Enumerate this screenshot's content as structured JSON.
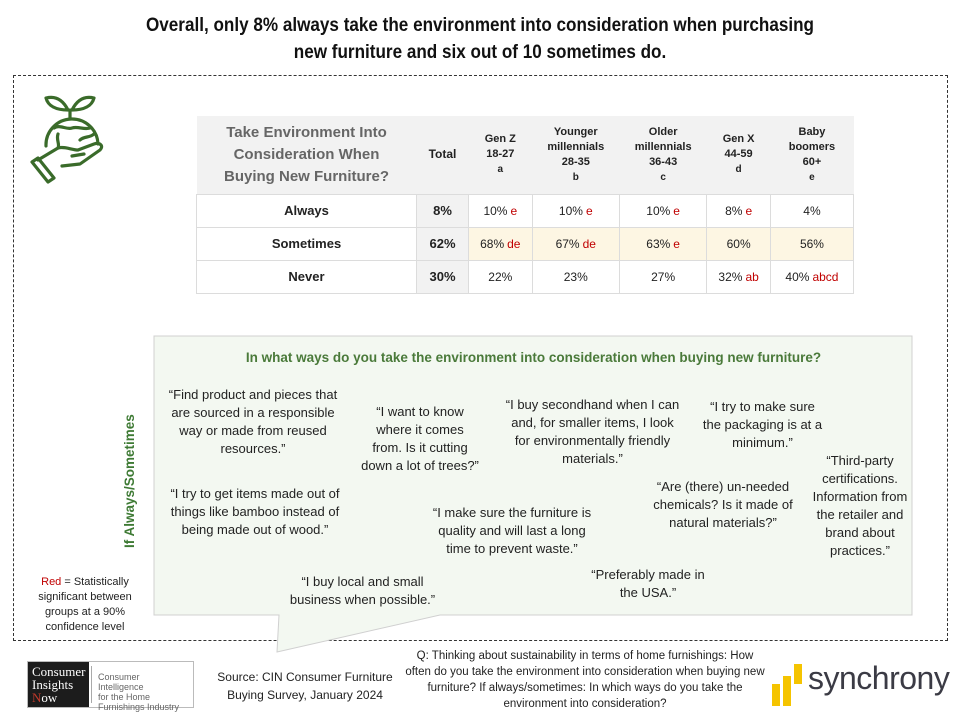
{
  "title": {
    "line1": "Overall, only 8% always take the environment into consideration when purchasing",
    "line2": "new furniture and six out of 10 sometimes do."
  },
  "icon": {
    "name": "hand-holding-earth-sprout-icon",
    "color": "#3a6b2a"
  },
  "table": {
    "question_header": [
      "Take Environment Into",
      "Consideration When",
      "Buying New Furniture?"
    ],
    "total_header": "Total",
    "columns": [
      {
        "lines": [
          "Gen Z",
          "18-27"
        ],
        "letter": "a"
      },
      {
        "lines": [
          "Younger",
          "millennials",
          "28-35"
        ],
        "letter": "b"
      },
      {
        "lines": [
          "Older",
          "millennials",
          "36-43"
        ],
        "letter": "c"
      },
      {
        "lines": [
          "Gen X",
          "44-59"
        ],
        "letter": "d"
      },
      {
        "lines": [
          "Baby",
          "boomers",
          "60+"
        ],
        "letter": "e"
      }
    ],
    "rows": [
      {
        "label": "Always",
        "total": "8%",
        "highlight": false,
        "cells": [
          {
            "value": "10%",
            "sig": "e"
          },
          {
            "value": "10%",
            "sig": "e"
          },
          {
            "value": "10%",
            "sig": "e"
          },
          {
            "value": "8%",
            "sig": "e"
          },
          {
            "value": "4%",
            "sig": ""
          }
        ]
      },
      {
        "label": "Sometimes",
        "total": "62%",
        "highlight": true,
        "cells": [
          {
            "value": "68%",
            "sig": "de"
          },
          {
            "value": "67%",
            "sig": "de"
          },
          {
            "value": "63%",
            "sig": "e"
          },
          {
            "value": "60%",
            "sig": ""
          },
          {
            "value": "56%",
            "sig": ""
          }
        ]
      },
      {
        "label": "Never",
        "total": "30%",
        "highlight": false,
        "cells": [
          {
            "value": "22%",
            "sig": ""
          },
          {
            "value": "23%",
            "sig": ""
          },
          {
            "value": "27%",
            "sig": ""
          },
          {
            "value": "32%",
            "sig": "ab"
          },
          {
            "value": "40%",
            "sig": "abcd"
          }
        ]
      }
    ],
    "colors": {
      "significance": "#c00000",
      "highlight_row": "#fdf6e3",
      "header_bg": "#f2f2f2"
    }
  },
  "open_ended": {
    "side_label": "If Always/Sometimes",
    "question": "In what ways do you take the environment into consideration when buying new furniture?",
    "quotes": [
      "“Find product and pieces that are sourced in a responsible way or made from reused resources.”",
      "“I want to know where it comes from. Is it cutting down a lot of trees?”",
      "“I buy secondhand when I can and, for smaller items, I look for environmentally friendly materials.”",
      "“I try to make sure the packaging is at a minimum.”",
      "“Third-party certifications. Information from the retailer and brand about practices.”",
      "“I try to get items made out of things like bamboo instead of being made out of wood.”",
      "“I make sure the furniture is quality and will last a long time to prevent waste.”",
      "“Are (there) un-needed chemicals? Is it made of natural materials?”",
      "“I buy local and small business when possible.”",
      "“Preferably made in the USA.”"
    ]
  },
  "legend": {
    "red_word": "Red",
    "rest": " = Statistically significant between groups at a 90% confidence level"
  },
  "footer": {
    "cin_logo": {
      "dark_lines": [
        "Consumer",
        "Insights",
        "Now"
      ],
      "tagline": [
        "Consumer Intelligence",
        "for the Home",
        "Furnishings Industry"
      ]
    },
    "source": "Source: CIN Consumer Furniture Buying Survey, January 2024",
    "question_note": "Q: Thinking about sustainability in terms of home furnishings: How often do you take the environment into consideration when buying new furniture? If always/sometimes: In which ways do you take the environment into consideration?",
    "synchrony": {
      "word": "synchrony",
      "bar_color": "#f5c400"
    }
  }
}
